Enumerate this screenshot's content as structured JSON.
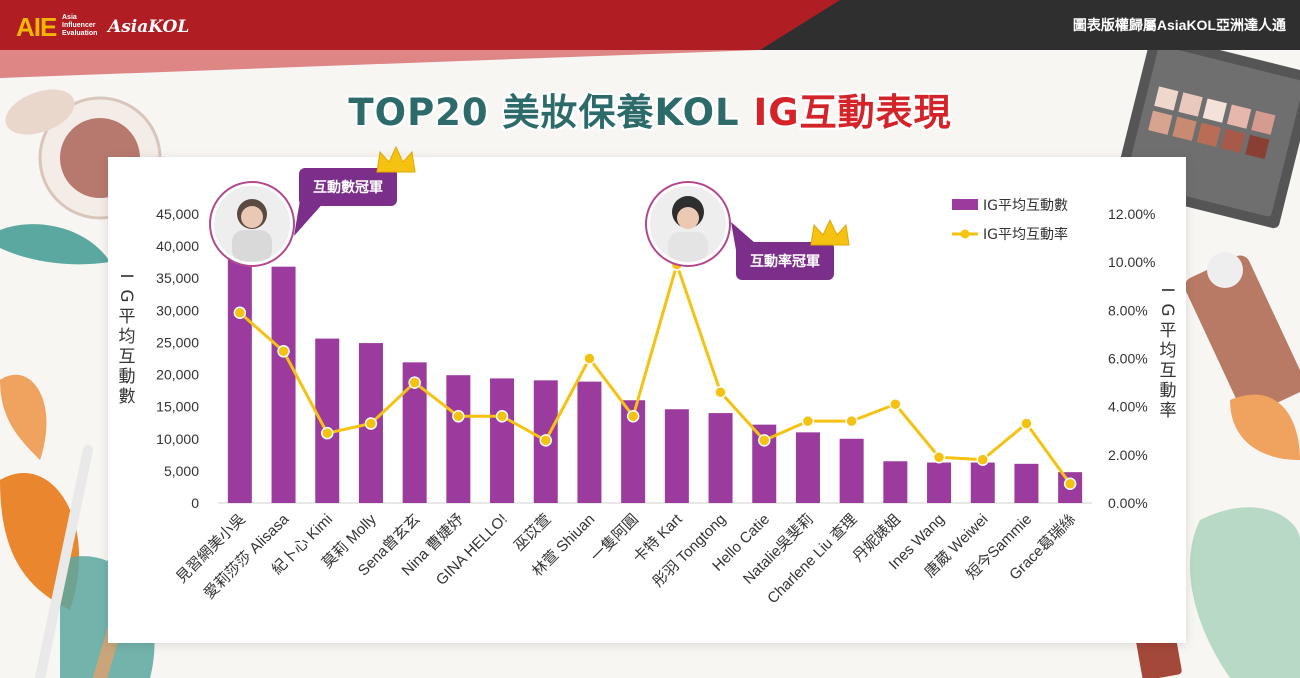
{
  "header": {
    "logo_aie": "AIE",
    "logo_sub": [
      "Asia",
      "Influencer",
      "Evaluation"
    ],
    "logo_asiakol": "AsiaKOL",
    "copyright": "圖表版權歸屬AsiaKOL亞洲達人通"
  },
  "title": {
    "part1": "TOP20 美妝保養KOL ",
    "part2": "IG互動表現"
  },
  "annotations": {
    "interaction_champion": "互動數冠軍",
    "rate_champion": "互動率冠軍"
  },
  "colors": {
    "bar": "#9b3b9e",
    "line": "#f5c211",
    "title": "#2d6b6b",
    "title_accent": "#d4242a",
    "bubble": "#7b2f8a",
    "topbar": "#b01e24"
  },
  "chart_data": {
    "type": "bar",
    "categories": [
      "見習網美小吳",
      "愛莉莎莎 Alisasa",
      "紀卜心 Kimi",
      "莫莉 Molly",
      "Sena曾玄玄",
      "Nina 曹婕妤",
      "GINA HELLO!",
      "巫苡萱",
      "林萱 Shiuan",
      "一隻阿圓",
      "卡特 Kart",
      "彤羽 Tongtong",
      "Hello Catie",
      "Natalie吳斐莉",
      "Charlene Liu 查理",
      "丹妮婊姐",
      "Ines Wang",
      "唐葳 Weiwei",
      "短今Sammie",
      "Grace葛瑞絲"
    ],
    "series": [
      {
        "name": "IG平均互動數",
        "type": "bar",
        "axis": "left",
        "values": [
          40000,
          36800,
          25600,
          24900,
          21900,
          19900,
          19400,
          19100,
          18900,
          16000,
          14600,
          14000,
          12200,
          11000,
          10000,
          6500,
          6300,
          6300,
          6100,
          4800
        ]
      },
      {
        "name": "IG平均互動率",
        "type": "line",
        "axis": "right",
        "values": [
          7.9,
          6.3,
          2.9,
          3.3,
          5.0,
          3.6,
          3.6,
          2.6,
          6.0,
          3.6,
          9.9,
          4.6,
          2.6,
          3.4,
          3.4,
          4.1,
          1.9,
          1.8,
          3.3,
          0.8
        ]
      }
    ],
    "ylabel": "IG平均互動數",
    "y2label": "IG平均互動率",
    "ylim": [
      0,
      45000
    ],
    "y2lim": [
      0,
      12
    ],
    "yticks": [
      "0",
      "5,000",
      "10,000",
      "15,000",
      "20,000",
      "25,000",
      "30,000",
      "35,000",
      "40,000",
      "45,000"
    ],
    "y2ticks": [
      "0.00%",
      "2.00%",
      "4.00%",
      "6.00%",
      "8.00%",
      "10.00%",
      "12.00%"
    ],
    "grid": false,
    "legend": "top-right"
  }
}
